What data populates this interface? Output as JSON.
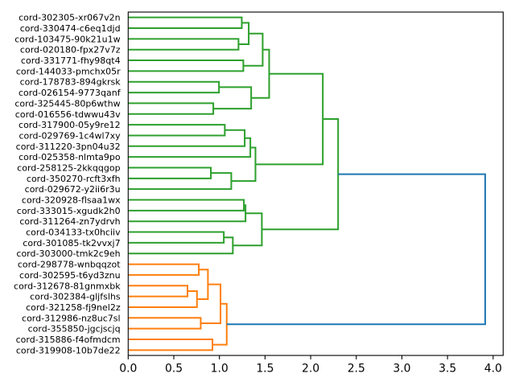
{
  "chart_data": {
    "type": "line",
    "subtype": "dendrogram",
    "orientation": "left",
    "title": "",
    "xlabel": "",
    "ylabel": "",
    "xlim": [
      0,
      4.11
    ],
    "grid": false,
    "legend": "none",
    "xticks": [
      0,
      0.5,
      1.0,
      1.5,
      2.0,
      2.5,
      3.0,
      3.5,
      4.0
    ],
    "xtick_labels": [
      "0.0",
      "0.5",
      "1.0",
      "1.5",
      "2.0",
      "2.5",
      "3.0",
      "3.5",
      "4.0"
    ],
    "colors": {
      "green": "#2ca02c",
      "orange": "#ff7f0e",
      "blue": "#1f77b4"
    },
    "leaves": [
      "cord-302305-xr067v2n",
      "cord-330474-c6eq1djd",
      "cord-103475-90k21u1w",
      "cord-020180-fpx27v7z",
      "cord-331771-fhy98qt4",
      "cord-144033-pmchx05r",
      "cord-178783-894gkrsk",
      "cord-026154-9773qanf",
      "cord-325445-80p6wthw",
      "cord-016556-tdwwu43v",
      "cord-317900-05y9re12",
      "cord-029769-1c4wl7xy",
      "cord-311220-3pn04u32",
      "cord-025358-nlmta9po",
      "cord-258125-2kkqqgop",
      "cord-350270-rcft3xfh",
      "cord-029672-y2ii6r3u",
      "cord-320928-flsaa1wx",
      "cord-333015-xgudk2h0",
      "cord-311264-zn7ydrvh",
      "cord-034133-tx0hciiv",
      "cord-301085-tk2vvxj7",
      "cord-303000-tmk2c9eh",
      "cord-298778-wnbqqzot",
      "cord-302595-t6yd3znu",
      "cord-312678-81gnmxbk",
      "cord-302384-gljfslhs",
      "cord-321258-fj9nel2z",
      "cord-312986-nz8uc7sl",
      "cord-355850-jgcjscjq",
      "cord-315886-f4ofmdcm",
      "cord-319908-10b7de22"
    ],
    "links": [
      {
        "id": "C0",
        "a": "L0",
        "b": "L1",
        "height": 1.245,
        "color": "green"
      },
      {
        "id": "C1",
        "a": "L2",
        "b": "L3",
        "height": 1.209,
        "color": "green"
      },
      {
        "id": "C2",
        "a": "C0",
        "b": "C1",
        "height": 1.321,
        "color": "green"
      },
      {
        "id": "C3",
        "a": "L4",
        "b": "L5",
        "height": 1.262,
        "color": "green"
      },
      {
        "id": "C4",
        "a": "C2",
        "b": "C3",
        "height": 1.474,
        "color": "green"
      },
      {
        "id": "C5",
        "a": "L6",
        "b": "L7",
        "height": 0.995,
        "color": "green"
      },
      {
        "id": "C6",
        "a": "L8",
        "b": "L9",
        "height": 0.933,
        "color": "green"
      },
      {
        "id": "C7",
        "a": "C5",
        "b": "C6",
        "height": 1.348,
        "color": "green"
      },
      {
        "id": "C8",
        "a": "C4",
        "b": "C7",
        "height": 1.545,
        "color": "green"
      },
      {
        "id": "C9",
        "a": "L10",
        "b": "L11",
        "height": 1.059,
        "color": "green"
      },
      {
        "id": "C10",
        "a": "C9",
        "b": "L12",
        "height": 1.277,
        "color": "green"
      },
      {
        "id": "C11",
        "a": "C10",
        "b": "L13",
        "height": 1.339,
        "color": "green"
      },
      {
        "id": "C12",
        "a": "L14",
        "b": "L15",
        "height": 0.906,
        "color": "green"
      },
      {
        "id": "C13",
        "a": "C12",
        "b": "L16",
        "height": 1.13,
        "color": "green"
      },
      {
        "id": "C14",
        "a": "C11",
        "b": "C13",
        "height": 1.395,
        "color": "green"
      },
      {
        "id": "C15",
        "a": "C8",
        "b": "C14",
        "height": 2.133,
        "color": "green"
      },
      {
        "id": "C16",
        "a": "L17",
        "b": "L18",
        "height": 1.268,
        "color": "green"
      },
      {
        "id": "C17",
        "a": "C16",
        "b": "L19",
        "height": 1.286,
        "color": "green"
      },
      {
        "id": "C18",
        "a": "L20",
        "b": "L21",
        "height": 1.048,
        "color": "green"
      },
      {
        "id": "C19",
        "a": "C18",
        "b": "L22",
        "height": 1.147,
        "color": "green"
      },
      {
        "id": "C20",
        "a": "C17",
        "b": "C19",
        "height": 1.465,
        "color": "green"
      },
      {
        "id": "C21",
        "a": "C15",
        "b": "C20",
        "height": 2.301,
        "color": "green"
      },
      {
        "id": "C22",
        "a": "L23",
        "b": "L24",
        "height": 0.774,
        "color": "orange"
      },
      {
        "id": "C23",
        "a": "L25",
        "b": "L26",
        "height": 0.65,
        "color": "orange"
      },
      {
        "id": "C24",
        "a": "C23",
        "b": "L27",
        "height": 0.754,
        "color": "orange"
      },
      {
        "id": "C25",
        "a": "C22",
        "b": "C24",
        "height": 0.874,
        "color": "orange"
      },
      {
        "id": "C26",
        "a": "L28",
        "b": "L29",
        "height": 0.795,
        "color": "orange"
      },
      {
        "id": "C27",
        "a": "C25",
        "b": "C26",
        "height": 1.012,
        "color": "orange"
      },
      {
        "id": "C28",
        "a": "L30",
        "b": "L31",
        "height": 0.924,
        "color": "orange"
      },
      {
        "id": "C29",
        "a": "C27",
        "b": "C28",
        "height": 1.08,
        "color": "orange"
      },
      {
        "id": "C30",
        "a": "C21",
        "b": "C29",
        "height": 3.913,
        "color": "blue"
      }
    ]
  }
}
